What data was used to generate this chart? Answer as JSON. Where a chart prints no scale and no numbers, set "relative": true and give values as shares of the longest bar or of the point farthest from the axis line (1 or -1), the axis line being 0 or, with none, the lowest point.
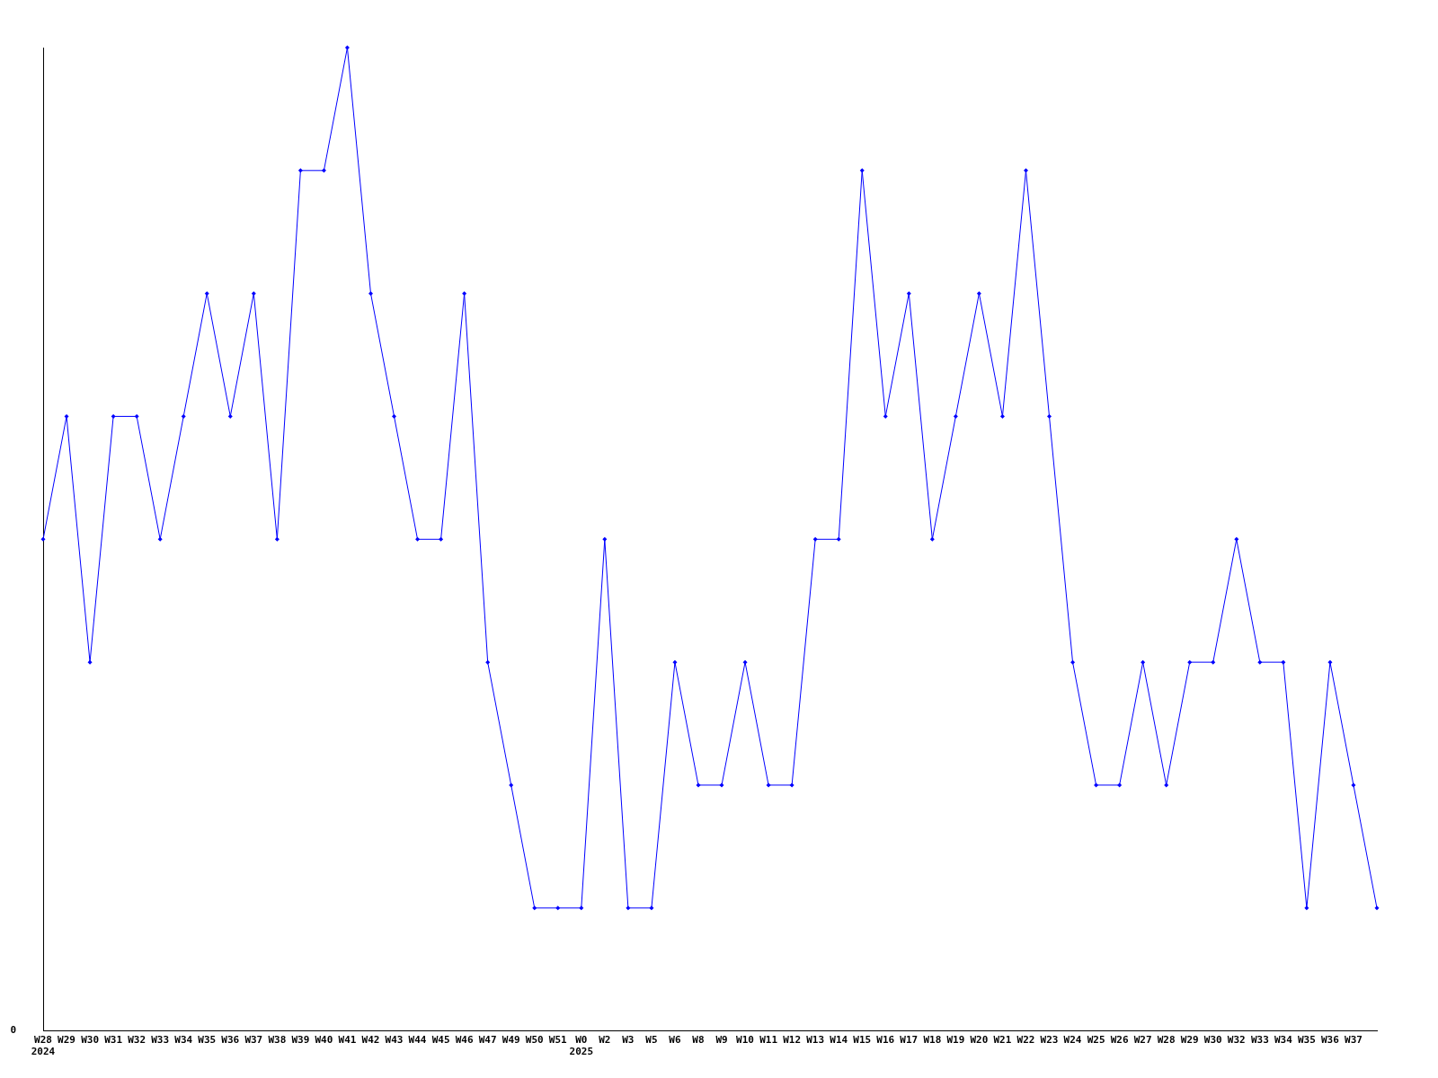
{
  "chart_data": {
    "type": "line",
    "relative": true,
    "annotations": [
      "0"
    ],
    "marker": "diamond",
    "grid": false,
    "legend": false,
    "categories": [
      "W28\n2024",
      "W29",
      "W30",
      "W31",
      "W32",
      "W33",
      "W34",
      "W35",
      "W36",
      "W37",
      "W38",
      "W39",
      "W40",
      "W41",
      "W42",
      "W43",
      "W44",
      "W45",
      "W46",
      "W47",
      "W49",
      "W50",
      "W51",
      "W0\n2025",
      "W2",
      "W3",
      "W5",
      "W6",
      "W8",
      "W9",
      "W10",
      "W11",
      "W12",
      "W13",
      "W14",
      "W15",
      "W16",
      "W17",
      "W18",
      "W19",
      "W20",
      "W21",
      "W22",
      "W23",
      "W24",
      "W25",
      "W26",
      "W27",
      "W28",
      "W29",
      "W30",
      "W32",
      "W33",
      "W34",
      "W35",
      "W36",
      "W37",
      null
    ],
    "series": [
      {
        "color": "#0000ff",
        "values": [
          0.5,
          0.625,
          0.375,
          0.625,
          0.625,
          0.5,
          0.625,
          0.75,
          0.625,
          0.75,
          0.5,
          0.875,
          0.875,
          1,
          0.75,
          0.625,
          0.5,
          0.5,
          0.75,
          0.375,
          0.25,
          0.125,
          0.125,
          0.125,
          0.5,
          0.125,
          0.125,
          0.375,
          0.25,
          0.25,
          0.375,
          0.25,
          0.25,
          0.5,
          0.5,
          0.875,
          0.625,
          0.75,
          0.5,
          0.625,
          0.75,
          0.625,
          0.875,
          0.625,
          0.375,
          0.25,
          0.25,
          0.375,
          0.25,
          0.375,
          0.375,
          0.5,
          0.375,
          0.375,
          0.125,
          0.375,
          0.25,
          0.125
        ]
      }
    ]
  }
}
